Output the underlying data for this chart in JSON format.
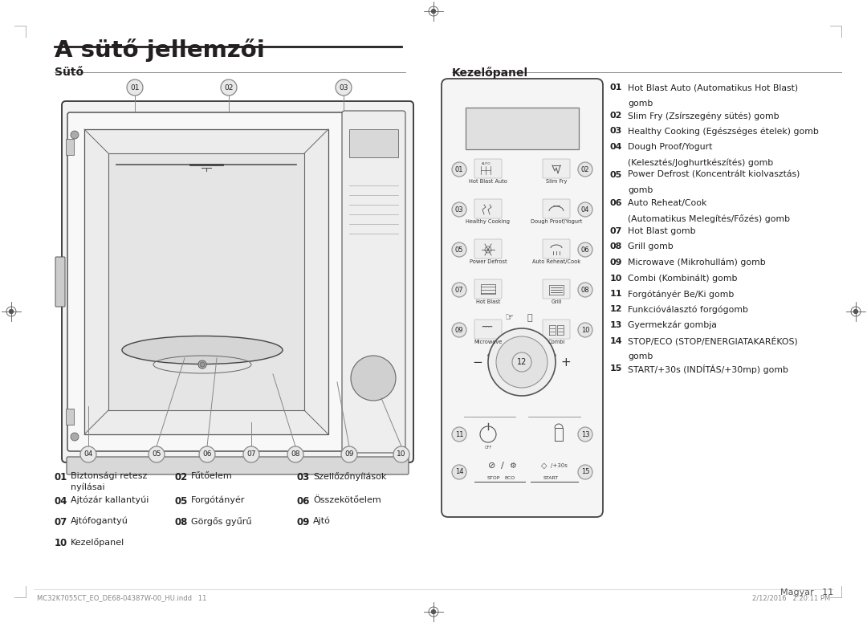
{
  "title": "A sütő jellemzői",
  "bg_color": "#ffffff",
  "text_color": "#231f20",
  "section_left": "Sütő",
  "section_right": "Kezelőpanel",
  "oven_items": [
    {
      "num": "01",
      "label": "Biztonsági retesz\nnyílásai"
    },
    {
      "num": "02",
      "label": "Fűtőelem"
    },
    {
      "num": "03",
      "label": "Szellőzőnyílások"
    },
    {
      "num": "04",
      "label": "Ajtózár kallantyúi"
    },
    {
      "num": "05",
      "label": "Forgótányér"
    },
    {
      "num": "06",
      "label": "Összekötőelem"
    },
    {
      "num": "07",
      "label": "Ajtófogantyú"
    },
    {
      "num": "08",
      "label": "Görgős gyűrű"
    },
    {
      "num": "09",
      "label": "Ajtó"
    },
    {
      "num": "10",
      "label": "Kezelőpanel"
    }
  ],
  "panel_items": [
    {
      "num": "01",
      "text": "Hot Blast Auto (Automatikus Hot Blast)\ngomb"
    },
    {
      "num": "02",
      "text": "Slim Fry (Zsírszegény sütés) gomb"
    },
    {
      "num": "03",
      "text": "Healthy Cooking (Egészséges ételek) gomb"
    },
    {
      "num": "04",
      "text": "Dough Proof/Yogurt\n(Kelesztés/Joghurtkészítés) gomb"
    },
    {
      "num": "05",
      "text": "Power Defrost (Koncentrált kiolvasztás)\ngomb"
    },
    {
      "num": "06",
      "text": "Auto Reheat/Cook\n(Automatikus Melegítés/Főzés) gomb"
    },
    {
      "num": "07",
      "text": "Hot Blast gomb"
    },
    {
      "num": "08",
      "text": "Grill gomb"
    },
    {
      "num": "09",
      "text": "Microwave (Mikrohullám) gomb"
    },
    {
      "num": "10",
      "text": "Combi (Kombinált) gomb"
    },
    {
      "num": "11",
      "text": "Forgótányér Be/Ki gomb"
    },
    {
      "num": "12",
      "text": "Funkcióválasztó forgógomb"
    },
    {
      "num": "13",
      "text": "Gyermekzár gombja"
    },
    {
      "num": "14",
      "text": "STOP/ECO (STOP/ENERGIATAKARÉKOS)\ngomb"
    },
    {
      "num": "15",
      "text": "START/+30s (INDÍTÁS/+30mp) gomb"
    }
  ],
  "footer_left": "MC32K7055CT_EO_DE68-04387W-00_HU.indd   11",
  "footer_right": "2/12/2016   2:20:11 PM",
  "footer_page": "Magyar   11"
}
